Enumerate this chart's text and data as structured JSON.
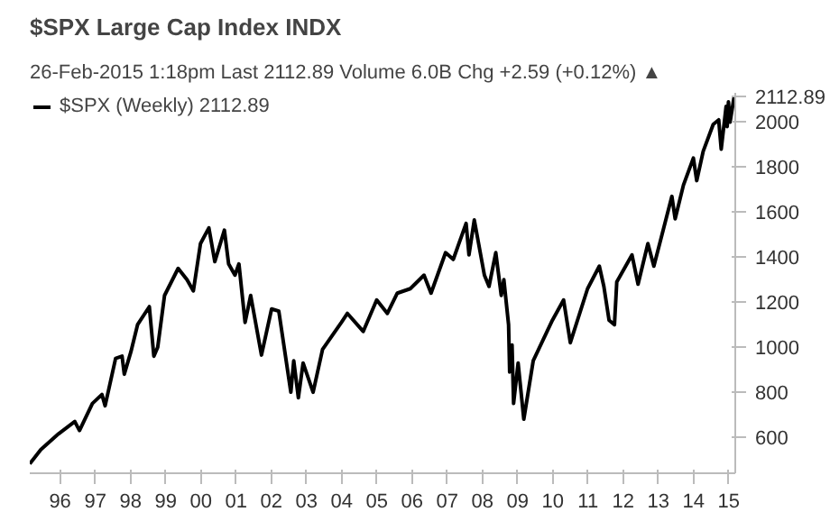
{
  "chart_data": {
    "type": "line",
    "title": "$SPX Large Cap Index INDX",
    "subtitle": "26-Feb-2015 1:18pm          Last 2112.89  Volume 6.0B  Chg +2.59 (+0.12%) ▲",
    "x": [
      "1995-02-20",
      "1995-06-15",
      "1995-12-15",
      "1996-06-01",
      "1996-07-20",
      "1996-12-01",
      "1997-03-10",
      "1997-04-12",
      "1997-07-30",
      "1997-10-05",
      "1997-10-28",
      "1998-01-05",
      "1998-03-15",
      "1998-07-15",
      "1998-08-31",
      "1998-10-10",
      "1998-12-20",
      "1999-05-10",
      "1999-08-10",
      "1999-10-15",
      "1999-12-28",
      "2000-03-24",
      "2000-05-25",
      "2000-09-01",
      "2000-10-15",
      "2000-12-20",
      "2001-01-30",
      "2001-04-04",
      "2001-06-01",
      "2001-09-21",
      "2002-01-04",
      "2002-03-20",
      "2002-07-23",
      "2002-08-22",
      "2002-10-09",
      "2002-11-27",
      "2003-03-11",
      "2003-06-17",
      "2003-12-30",
      "2004-03-01",
      "2004-08-12",
      "2004-12-30",
      "2005-04-20",
      "2005-08-01",
      "2005-12-14",
      "2006-05-05",
      "2006-07-17",
      "2006-12-15",
      "2007-03-05",
      "2007-07-16",
      "2007-08-15",
      "2007-10-09",
      "2008-01-22",
      "2008-03-10",
      "2008-05-19",
      "2008-07-15",
      "2008-08-11",
      "2008-09-29",
      "2008-10-10",
      "2008-11-04",
      "2008-11-20",
      "2009-01-06",
      "2009-03-06",
      "2009-06-12",
      "2009-12-28",
      "2010-04-23",
      "2010-07-02",
      "2010-12-28",
      "2011-04-29",
      "2011-06-15",
      "2011-08-08",
      "2011-10-03",
      "2011-10-27",
      "2012-04-02",
      "2012-06-04",
      "2012-09-14",
      "2012-11-15",
      "2013-05-21",
      "2013-06-24",
      "2013-09-18",
      "2013-12-30",
      "2014-02-03",
      "2014-04-11",
      "2014-07-24",
      "2014-09-19",
      "2014-10-15",
      "2014-12-05",
      "2014-12-16",
      "2014-12-29",
      "2015-01-15",
      "2015-02-26"
    ],
    "series": [
      {
        "name": "$SPX (Weekly) 2112.89",
        "color": "#000000",
        "values": [
          482,
          545,
          615,
          670,
          630,
          750,
          790,
          740,
          950,
          960,
          880,
          980,
          1100,
          1180,
          960,
          1000,
          1230,
          1350,
          1300,
          1250,
          1460,
          1530,
          1380,
          1520,
          1370,
          1320,
          1370,
          1110,
          1230,
          965,
          1170,
          1160,
          800,
          940,
          775,
          930,
          800,
          990,
          1110,
          1150,
          1070,
          1210,
          1150,
          1240,
          1260,
          1320,
          1240,
          1420,
          1390,
          1550,
          1410,
          1565,
          1320,
          1270,
          1420,
          1230,
          1300,
          1100,
          890,
          1010,
          750,
          930,
          680,
          940,
          1120,
          1210,
          1020,
          1260,
          1360,
          1270,
          1120,
          1100,
          1290,
          1410,
          1280,
          1460,
          1360,
          1670,
          1570,
          1720,
          1840,
          1740,
          1870,
          1990,
          2010,
          1880,
          2070,
          1980,
          2090,
          2000,
          2112.89
        ]
      }
    ],
    "xlim": [
      "1995-02-20",
      "2015-03-10"
    ],
    "ylim": [
      440,
      2130
    ],
    "xticks": [
      {
        "value": "1996-01-01",
        "label": "96"
      },
      {
        "value": "1997-01-01",
        "label": "97"
      },
      {
        "value": "1998-01-01",
        "label": "98"
      },
      {
        "value": "1999-01-01",
        "label": "99"
      },
      {
        "value": "2000-01-01",
        "label": "00"
      },
      {
        "value": "2001-01-01",
        "label": "01"
      },
      {
        "value": "2002-01-01",
        "label": "02"
      },
      {
        "value": "2003-01-01",
        "label": "03"
      },
      {
        "value": "2004-01-01",
        "label": "04"
      },
      {
        "value": "2005-01-01",
        "label": "05"
      },
      {
        "value": "2006-01-01",
        "label": "06"
      },
      {
        "value": "2007-01-01",
        "label": "07"
      },
      {
        "value": "2008-01-01",
        "label": "08"
      },
      {
        "value": "2009-01-01",
        "label": "09"
      },
      {
        "value": "2010-01-01",
        "label": "10"
      },
      {
        "value": "2011-01-01",
        "label": "11"
      },
      {
        "value": "2012-01-01",
        "label": "12"
      },
      {
        "value": "2013-01-01",
        "label": "13"
      },
      {
        "value": "2014-01-01",
        "label": "14"
      },
      {
        "value": "2015-01-01",
        "label": "15"
      }
    ],
    "yticks": [
      600,
      800,
      1000,
      1200,
      1400,
      1600,
      1800,
      2000,
      2112.89
    ],
    "grid": false,
    "legend": "top left",
    "marker": "none",
    "line_style": "solid"
  }
}
